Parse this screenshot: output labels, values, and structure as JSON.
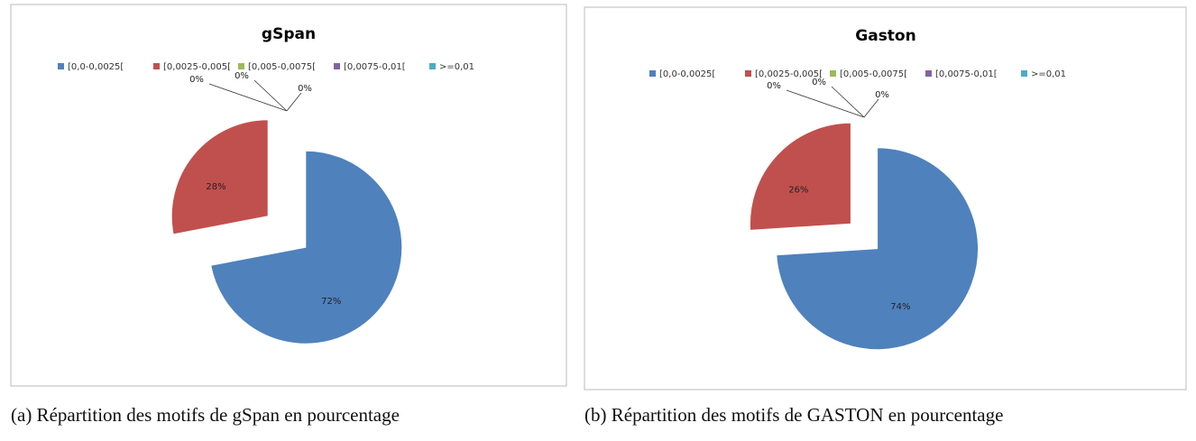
{
  "chart_data": [
    {
      "type": "pie",
      "title": "gSpan",
      "categories": [
        "[0,0-0,0025[",
        "[0,0025-0,005[",
        "[0,005-0,0075[",
        "[0,0075-0,01[",
        ">=0,01"
      ],
      "values": [
        72,
        28,
        0,
        0,
        0
      ],
      "value_labels": [
        "72%",
        "28%",
        "0%",
        "0%",
        "0%"
      ],
      "colors": [
        "#4f81bd",
        "#c0504d",
        "#9bbb59",
        "#8064a2",
        "#4bacc6"
      ]
    },
    {
      "type": "pie",
      "title": "Gaston",
      "categories": [
        "[0,0-0,0025[",
        "[0,0025-0,005[",
        "[0,005-0,0075[",
        "[0,0075-0,01[",
        ">=0,01"
      ],
      "values": [
        74,
        26,
        0,
        0,
        0
      ],
      "value_labels": [
        "74%",
        "26%",
        "0%",
        "0%",
        "0%"
      ],
      "colors": [
        "#4f81bd",
        "#c0504d",
        "#9bbb59",
        "#8064a2",
        "#4bacc6"
      ]
    }
  ],
  "captions": [
    "(a) Répartition des motifs de gSpan en pourcentage",
    "(b) Répartition des motifs de GASTON en pourcentage"
  ]
}
